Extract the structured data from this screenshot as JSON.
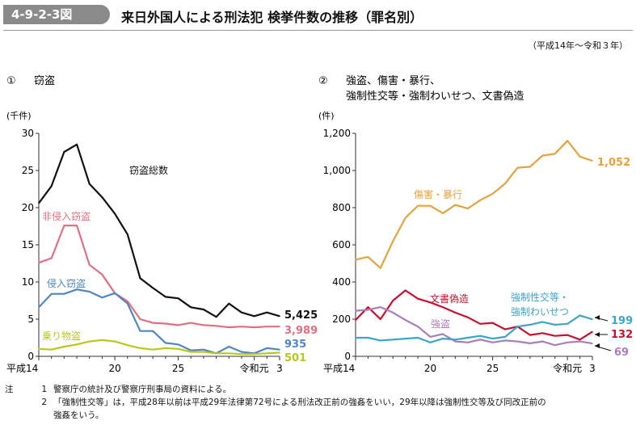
{
  "header": {
    "tag": "4-9-2-3図",
    "title": "来日外国人による刑法犯 検挙件数の推移（罪名別）",
    "period": "（平成14年～令和３年）"
  },
  "notes": {
    "label": "注",
    "items": [
      {
        "num": "1",
        "text": "警察庁の統計及び警察庁刑事局の資料による。"
      },
      {
        "num": "2",
        "text": "「強制性交等」は，平成28年以前は平成29年法律第72号による刑法改正前の強姦をいい，29年以降は強制性交等及び同改正前の"
      },
      {
        "num": "",
        "text": "強姦をいう。"
      }
    ]
  },
  "chart_data": [
    {
      "type": "line",
      "panel": "①",
      "title": "窃盗",
      "ylabel": "(千件)",
      "ylim": [
        0,
        30
      ],
      "yticks": [
        0,
        5,
        10,
        15,
        20,
        25,
        30
      ],
      "x_labels": [
        "平成14",
        "20",
        "25",
        "令和元",
        "3"
      ],
      "x": [
        2002,
        2003,
        2004,
        2005,
        2006,
        2007,
        2008,
        2009,
        2010,
        2011,
        2012,
        2013,
        2014,
        2015,
        2016,
        2017,
        2018,
        2019,
        2020,
        2021
      ],
      "series": [
        {
          "name": "窃盗総数",
          "color": "#111111",
          "end_label": "5,425",
          "values": [
            20.6,
            22.9,
            27.5,
            28.5,
            23.2,
            21.4,
            19.2,
            16.4,
            10.5,
            9.2,
            8.0,
            7.8,
            6.6,
            6.3,
            5.3,
            7.1,
            5.9,
            5.4,
            5.9,
            5.4
          ]
        },
        {
          "name": "非侵入窃盗",
          "color": "#e0707f",
          "end_label": "3,989",
          "values": [
            12.6,
            13.2,
            17.6,
            17.6,
            12.3,
            11.0,
            8.5,
            7.4,
            5.0,
            4.5,
            4.4,
            4.2,
            4.5,
            4.2,
            4.1,
            3.9,
            4.0,
            3.9,
            4.0,
            4.0
          ]
        },
        {
          "name": "侵入窃盗",
          "color": "#4f87bf",
          "end_label": "935",
          "values": [
            6.6,
            8.4,
            8.4,
            9.0,
            8.7,
            7.9,
            8.5,
            7.1,
            3.4,
            3.4,
            1.8,
            1.6,
            0.8,
            0.9,
            0.4,
            1.3,
            0.6,
            0.4,
            1.1,
            0.9
          ]
        },
        {
          "name": "乗り物盗",
          "color": "#b8c81e",
          "end_label": "501",
          "values": [
            1.0,
            0.9,
            1.3,
            1.6,
            2.0,
            2.2,
            2.0,
            1.5,
            1.1,
            0.9,
            1.1,
            1.0,
            0.6,
            0.6,
            0.4,
            0.4,
            0.3,
            0.3,
            0.4,
            0.5
          ]
        }
      ]
    },
    {
      "type": "line",
      "panel": "②",
      "title": "強盗、傷害・暴行、",
      "title2": "強制性交等・強制わいせつ、文書偽造",
      "ylabel": "(件)",
      "ylim": [
        0,
        1200
      ],
      "yticks": [
        0,
        200,
        400,
        600,
        800,
        1000,
        1200
      ],
      "x_labels": [
        "平成14",
        "20",
        "25",
        "令和元",
        "3"
      ],
      "x": [
        2002,
        2003,
        2004,
        2005,
        2006,
        2007,
        2008,
        2009,
        2010,
        2011,
        2012,
        2013,
        2014,
        2015,
        2016,
        2017,
        2018,
        2019,
        2020,
        2021
      ],
      "series": [
        {
          "name": "傷害・暴行",
          "color": "#e8a23a",
          "end_label": "1,052",
          "values": [
            520,
            535,
            475,
            620,
            745,
            810,
            810,
            770,
            815,
            795,
            840,
            875,
            930,
            1015,
            1020,
            1080,
            1090,
            1160,
            1075,
            1052
          ]
        },
        {
          "name": "文書偽造",
          "color": "#c8102e",
          "end_label": "132",
          "values": [
            195,
            265,
            200,
            300,
            355,
            310,
            290,
            265,
            235,
            210,
            175,
            180,
            145,
            160,
            115,
            125,
            110,
            115,
            90,
            132
          ]
        },
        {
          "name": "強盗",
          "color": "#a87dbb",
          "end_label": "69",
          "values": [
            245,
            250,
            265,
            235,
            195,
            160,
            105,
            120,
            80,
            75,
            90,
            75,
            85,
            80,
            70,
            80,
            60,
            75,
            80,
            69
          ]
        },
        {
          "name": "強制性交等・\n強制わいせつ",
          "color": "#3aa6c9",
          "end_label": "199",
          "values": [
            100,
            100,
            85,
            90,
            95,
            100,
            75,
            95,
            90,
            100,
            110,
            95,
            105,
            160,
            170,
            185,
            170,
            175,
            220,
            199
          ]
        }
      ]
    }
  ]
}
